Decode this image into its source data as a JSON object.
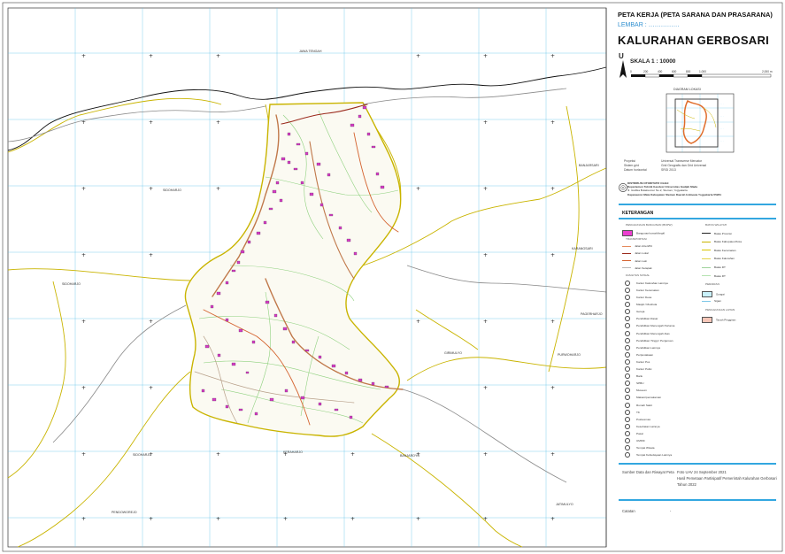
{
  "header": {
    "title": "PETA KERJA (PETA SARANA DAN PRASARANA)",
    "sheet": "LEMBAR : ……………",
    "village": "KALURAHAN GERBOSARI",
    "north": "U",
    "scale": "SKALA 1 : 10000",
    "scale_ticks": [
      "0",
      "200",
      "400",
      "600",
      "800",
      "1,000",
      "2,000 m"
    ]
  },
  "overview": {
    "title": "DIAGRAM LOKASI"
  },
  "projection": {
    "rows": [
      {
        "key": "Proyeksi",
        "value": "Universal Transverse Mercator"
      },
      {
        "key": "Sistem grid",
        "value": "Grid Geografis dan Grid Universal"
      },
      {
        "key": "Datum horizontal",
        "value": "SRGI 2013"
      }
    ]
  },
  "institution": {
    "lines": [
      "DISTRIBUSI OTORITATIF OLEH:",
      "Departemen Teknik Geodesi Universitas Gadjah Mada",
      "Jl. Grafika Bulaksumur No.2, Sleman, Yogyakarta",
      "Kapanewon Mata Kabupaten Sleman Daerah Istimewa Yogyakarta 55281"
    ]
  },
  "legend": {
    "title": "KETERANGAN",
    "left": [
      {
        "label": "PENGGUNAAN BANGUNAN (BNPW)",
        "kind": "header"
      },
      {
        "label": "Bangunan/rumah/bngkl",
        "kind": "fill",
        "color": "#ec3fd0"
      },
      {
        "label": "TRANSPORTASI",
        "kind": "header"
      },
      {
        "label": "Jalan Arteri/Klt",
        "kind": "line",
        "color": "#e58a5c"
      },
      {
        "label": "Jalan Lokal",
        "kind": "line",
        "color": "#9b2a1c"
      },
      {
        "label": "Jalan Lain",
        "kind": "line",
        "color": "#d4622e"
      },
      {
        "label": "Jalan Setapak",
        "kind": "line",
        "color": "#b8b8b8"
      },
      {
        "label": "FASILITAS SOSIAL",
        "kind": "header"
      },
      {
        "label": "Kantor Kalurahan Lainnya",
        "kind": "symbol"
      },
      {
        "label": "Kantor Kecamatan",
        "kind": "symbol"
      },
      {
        "label": "Kantor Desa",
        "kind": "symbol"
      },
      {
        "label": "Masjid / Mushola",
        "kind": "symbol"
      },
      {
        "label": "Gereja",
        "kind": "symbol"
      },
      {
        "label": "Pendidikan Dasar",
        "kind": "symbol"
      },
      {
        "label": "Pendidikan Menengah Pertama",
        "kind": "symbol"
      },
      {
        "label": "Pendidikan Menengah Atas",
        "kind": "symbol"
      },
      {
        "label": "Pendidikan Tinggi / Perguruan",
        "kind": "symbol"
      },
      {
        "label": "Pendidikan Lainnya",
        "kind": "symbol"
      },
      {
        "label": "Perpustakaan",
        "kind": "symbol"
      },
      {
        "label": "Kantor Pos",
        "kind": "symbol"
      },
      {
        "label": "Kantor Polisi",
        "kind": "symbol"
      },
      {
        "label": "Bank",
        "kind": "symbol"
      },
      {
        "label": "SPBU",
        "kind": "symbol"
      },
      {
        "label": "Museum",
        "kind": "symbol"
      },
      {
        "label": "Makam/pemakaman",
        "kind": "symbol"
      },
      {
        "label": "Rumah Sakit",
        "kind": "symbol"
      },
      {
        "label": "TK",
        "kind": "symbol"
      },
      {
        "label": "Puskesmas",
        "kind": "symbol"
      },
      {
        "label": "Kesehatan Lainnya",
        "kind": "symbol"
      },
      {
        "label": "Pasar",
        "kind": "symbol"
      },
      {
        "label": "UMKM",
        "kind": "symbol"
      },
      {
        "label": "Tempat Wisata",
        "kind": "symbol"
      },
      {
        "label": "Tempat Kebudayaan Lainnya",
        "kind": "symbol"
      }
    ],
    "right": [
      {
        "label": "BATAS WILAYAH",
        "kind": "header"
      },
      {
        "label": "Batas Provinsi",
        "kind": "line",
        "color": "#222222"
      },
      {
        "label": "Batas Kabupaten/Kota",
        "kind": "line",
        "color": "#c9b400"
      },
      {
        "label": "Batas Kecamatan",
        "kind": "line",
        "color": "#d8c400"
      },
      {
        "label": "Batas Kalurahan",
        "kind": "line",
        "color": "#e3d34a"
      },
      {
        "label": "Batas RT",
        "kind": "line",
        "color": "#9fd39b"
      },
      {
        "label": "Batas RT",
        "kind": "line",
        "color": "#b5e3b0"
      },
      {
        "label": "PERAIRAN",
        "kind": "header"
      },
      {
        "label": "Sungai",
        "kind": "fill",
        "color": "#c9f1fb"
      },
      {
        "label": "Sigan",
        "kind": "line",
        "color": "#7cc7e7"
      },
      {
        "label": "PENGGUNAAN LAHAN",
        "kind": "header"
      },
      {
        "label": "Tanah Pinggiran",
        "kind": "fill",
        "color": "#f6c6b8"
      }
    ]
  },
  "source": {
    "label": "Sumber Data dan Riwayat Peta",
    "lines": [
      "Foto UAV 24 September 2021",
      "Hasil Pemetaan Partisipatif Pemerintah Kalurahan Gerbosari",
      "Tahun 2022"
    ]
  },
  "catatan": {
    "label": "Catatan",
    "value": "-"
  },
  "map": {
    "place_labels": [
      {
        "name": "JAWA TENGAH"
      },
      {
        "name": "SIDOHARJO"
      },
      {
        "name": "SIDOHARJO"
      },
      {
        "name": "SIDOHARJO"
      },
      {
        "name": "PENDOWOREJO"
      },
      {
        "name": "BANJAROYO"
      },
      {
        "name": "JATIMULYO"
      },
      {
        "name": "BANJARSARI"
      },
      {
        "name": "KARANGSARI"
      },
      {
        "name": "PAGERHARJO"
      },
      {
        "name": "PURWOHARJO"
      },
      {
        "name": "GIRIMULYO"
      },
      {
        "name": "KERAHARJO"
      }
    ],
    "colors": {
      "grid": "#5fc3ea",
      "boundary": "#c9b400",
      "road_main": "#c0784a",
      "buildings": "#d43fc4",
      "rt_lines": "#8fd17f"
    }
  }
}
